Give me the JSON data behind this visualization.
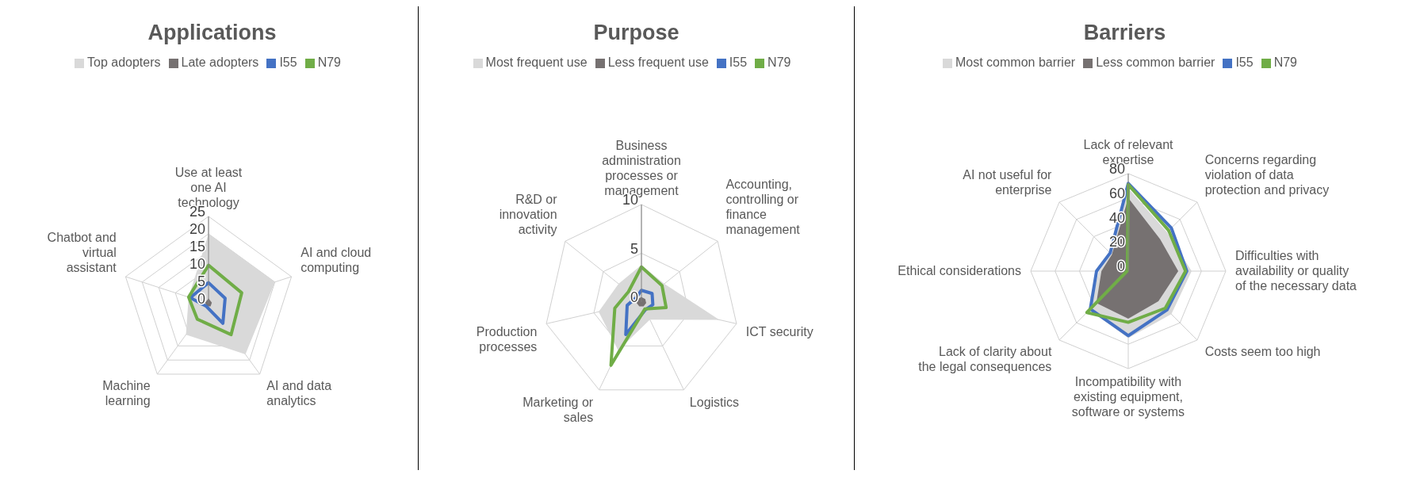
{
  "chart_data": [
    {
      "type": "radar",
      "title": "Applications",
      "categories": [
        "Use at least one AI technology",
        "AI and cloud computing",
        "AI and data analytics",
        "Machine learning",
        "Chatbot and virtual assistant"
      ],
      "ylim": [
        0,
        25
      ],
      "yticks": [
        0,
        5,
        10,
        15,
        20,
        25
      ],
      "grid": true,
      "legend": "top",
      "series": [
        {
          "name": "Top adopters",
          "color": "#d9d9d9",
          "values": [
            20,
            20,
            18,
            11,
            6
          ]
        },
        {
          "name": "Late adopters",
          "color": "#767171",
          "values": [
            1.5,
            1,
            1,
            1,
            1
          ]
        },
        {
          "name": "I55",
          "line_style": "solid",
          "color": "#4472c4",
          "values": [
            6,
            5,
            7,
            1,
            5.5
          ]
        },
        {
          "name": "N79",
          "line_style": "solid",
          "color": "#70ad47",
          "values": [
            11,
            10,
            11,
            5.5,
            6
          ]
        }
      ]
    },
    {
      "type": "radar",
      "title": "Purpose",
      "categories": [
        "Business administration processes or management",
        "Accounting, controlling or finance management",
        "ICT security",
        "Logistics",
        "Marketing or sales",
        "Production processes",
        "R&D or innovation activity"
      ],
      "ylim": [
        0,
        10
      ],
      "yticks": [
        0,
        5,
        10
      ],
      "grid": true,
      "legend": "top",
      "series": [
        {
          "name": "Most frequent use",
          "color": "#d9d9d9",
          "values": [
            3.8,
            3,
            8.2,
            2,
            5.5,
            4.5,
            3
          ]
        },
        {
          "name": "Less frequent use",
          "color": "#767171",
          "values": [
            0.5,
            0.5,
            0.5,
            0.5,
            0.5,
            0.5,
            0.5
          ]
        },
        {
          "name": "I55",
          "line_style": "solid",
          "color": "#4472c4",
          "values": [
            1.2,
            1.4,
            1.2,
            0.9,
            3.7,
            1.5,
            0.7
          ]
        },
        {
          "name": "N79",
          "line_style": "solid",
          "color": "#70ad47",
          "values": [
            3.6,
            2.7,
            2.6,
            0.8,
            7.2,
            2.8,
            1.7
          ]
        }
      ]
    },
    {
      "type": "radar",
      "title": "Barriers",
      "categories": [
        "Lack of relevant expertise",
        "Concerns regarding violation of data protection and privacy",
        "Difficulties with availability or quality of the necessary data",
        "Costs seem too high",
        "Incompatibility with existing equipment, software or systems",
        "Lack of clarity about the legal consequences",
        "Ethical considerations",
        "AI not useful for enterprise"
      ],
      "ylim": [
        0,
        80
      ],
      "yticks": [
        0,
        20,
        40,
        60,
        80
      ],
      "grid": true,
      "legend": "top",
      "series": [
        {
          "name": "Most common barrier",
          "color": "#d9d9d9",
          "values": [
            68,
            45,
            52,
            50,
            55,
            45,
            24,
            20
          ]
        },
        {
          "name": "Less common barrier",
          "color": "#767171",
          "values": [
            60,
            37,
            41,
            35,
            39,
            37,
            22,
            19
          ]
        },
        {
          "name": "I55",
          "line_style": "solid",
          "color": "#4472c4",
          "values": [
            72,
            50,
            48,
            45,
            53,
            44,
            26,
            21
          ]
        },
        {
          "name": "N79",
          "line_style": "solid",
          "color": "#70ad47",
          "values": [
            71,
            47,
            47,
            43,
            42,
            48,
            1,
            1
          ]
        }
      ]
    }
  ]
}
